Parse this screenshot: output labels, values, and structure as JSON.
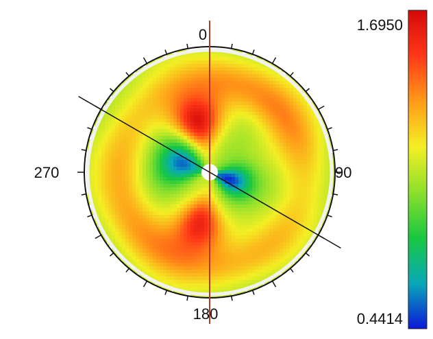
{
  "chart_data": {
    "type": "heatmap",
    "subtype": "polar",
    "angle_labels": [
      {
        "angle": 0,
        "text": "0"
      },
      {
        "angle": 90,
        "text": "90"
      },
      {
        "angle": 180,
        "text": "180"
      },
      {
        "angle": 270,
        "text": "270"
      }
    ],
    "colorbar": {
      "max_label": "1.6950",
      "min_label": "0.4414",
      "max": 1.695,
      "min": 0.4414,
      "colors": [
        "#0b18d8",
        "#0aa8b8",
        "#19c840",
        "#8ce02c",
        "#f3ef24",
        "#ff9b18",
        "#ff3818",
        "#d30a0a"
      ]
    },
    "meridians": [
      {
        "angle": 0,
        "color": "#b23a24"
      },
      {
        "angle": 120,
        "color": "#111111"
      }
    ],
    "field": {
      "type": "interpolated_polar_map",
      "base_value": 1.05,
      "features": [
        {
          "angle": 345,
          "radius": 0.42,
          "value": 1.66,
          "spread_angle": 26,
          "spread_radius": 0.22
        },
        {
          "angle": 190,
          "radius": 0.42,
          "value": 1.6,
          "spread_angle": 24,
          "spread_radius": 0.23
        },
        {
          "angle": 108,
          "radius": 0.16,
          "value": 0.48,
          "spread_angle": 35,
          "spread_radius": 0.2
        },
        {
          "angle": 290,
          "radius": 0.24,
          "value": 0.52,
          "spread_angle": 36,
          "spread_radius": 0.22
        },
        {
          "angle": 40,
          "radius": 0.76,
          "value": 1.38,
          "spread_angle": 55,
          "spread_radius": 0.2
        },
        {
          "angle": 230,
          "radius": 0.74,
          "value": 1.34,
          "spread_angle": 60,
          "spread_radius": 0.2
        },
        {
          "angle": 145,
          "radius": 0.78,
          "value": 1.22,
          "spread_angle": 50,
          "spread_radius": 0.18
        },
        {
          "angle": 320,
          "radius": 0.74,
          "value": 1.18,
          "spread_angle": 45,
          "spread_radius": 0.18
        }
      ]
    }
  }
}
